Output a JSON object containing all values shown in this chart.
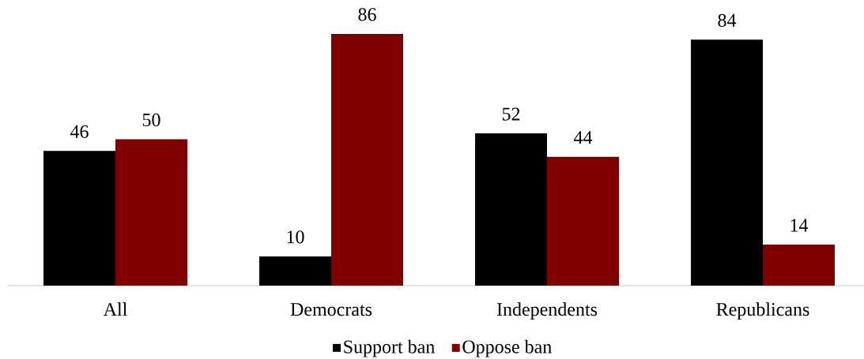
{
  "chart_data": {
    "type": "bar",
    "categories": [
      "All",
      "Democrats",
      "Independents",
      "Republicans"
    ],
    "series": [
      {
        "name": "Support ban",
        "color": "#000000",
        "values": [
          46,
          10,
          52,
          84
        ]
      },
      {
        "name": "Oppose ban",
        "color": "#800000",
        "values": [
          50,
          86,
          44,
          14
        ]
      }
    ],
    "data_labels": true,
    "legend": "bottom"
  }
}
